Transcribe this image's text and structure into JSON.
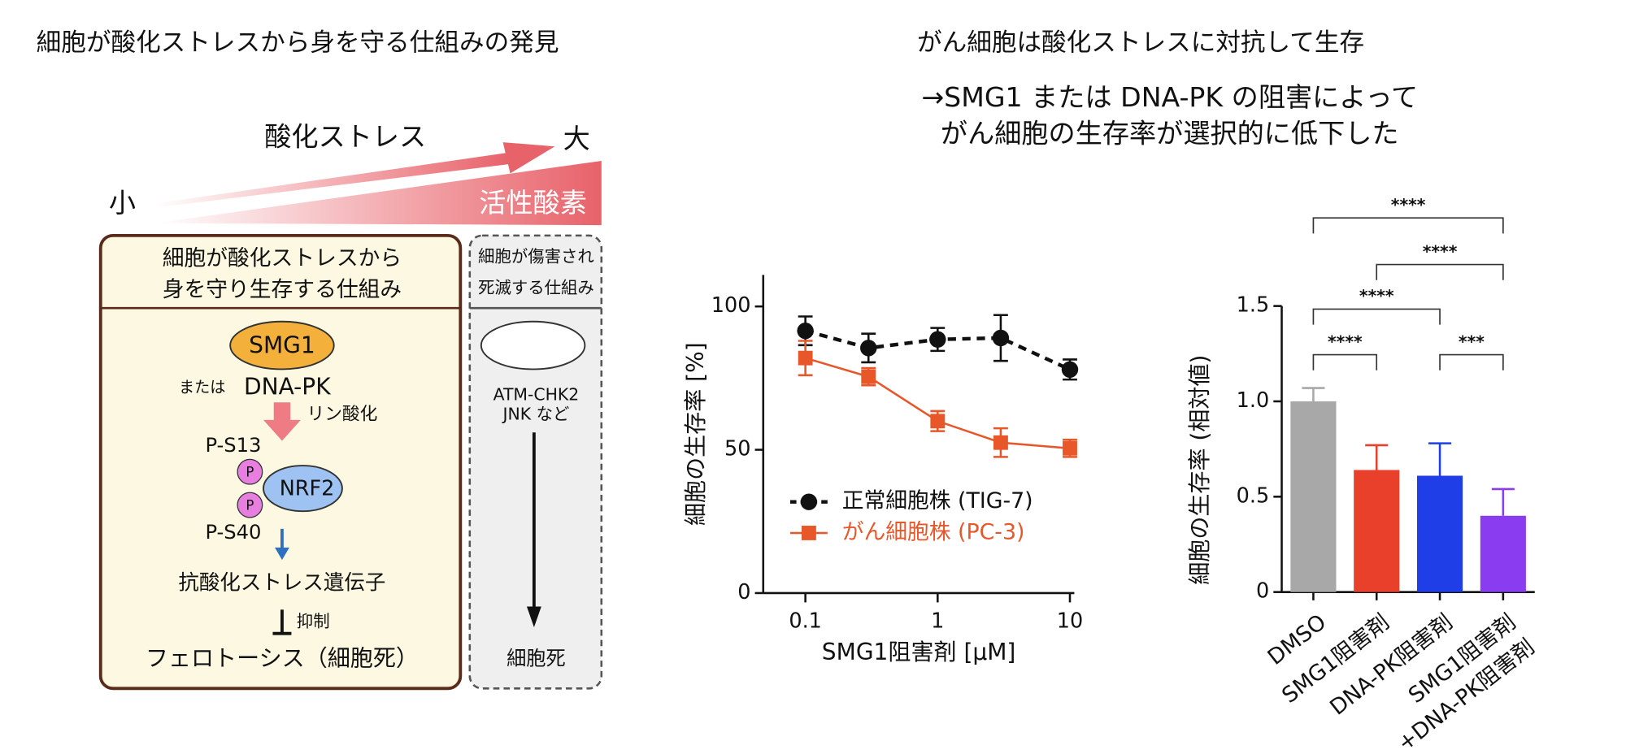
{
  "diagram": {
    "title": "細胞が酸化ストレスから身を守る仕組みの発見",
    "stress_label": "酸化ストレス",
    "small": "小",
    "large": "大",
    "ros": "活性酸素",
    "survival_box": {
      "header": [
        "細胞が酸化ストレスから",
        "身を守り生存する仕組み"
      ],
      "smg1": "SMG1",
      "or": "または",
      "dnapk": "DNA-PK",
      "phos": "リン酸化",
      "ps13": "P-S13",
      "p1": "P",
      "p2": "P",
      "nrf2": "NRF2",
      "ps40": "P-S40",
      "genes": "抗酸化ストレス遺伝子",
      "inhibit": "抑制",
      "ferroptosis": "フェロトーシス（細胞死）"
    },
    "death_box": {
      "header": [
        "細胞が傷害され",
        "死滅する仕組み"
      ],
      "pathway": [
        "ATM-CHK2",
        "JNK など"
      ],
      "death": "細胞死"
    }
  },
  "right_title": "がん細胞は酸化ストレスに対抗して生存",
  "right_subtitle": [
    "→SMG1 または DNA-PK の阻害によって",
    "がん細胞の生存率が選択的に低下した"
  ],
  "chart_data": [
    {
      "type": "line",
      "x": [
        0.1,
        0.3,
        1,
        3,
        10
      ],
      "xlim": [
        0.048,
        10.8
      ],
      "xticks": [
        0.1,
        1,
        10
      ],
      "xlog": true,
      "ylim": [
        0,
        111
      ],
      "yticks": [
        0,
        50,
        100
      ],
      "xlabel": "SMG1阻害剤 [μM]",
      "ylabel": "細胞の生存率 [%]",
      "series": [
        {
          "name": "正常細胞株 (TIG-7)",
          "color": "#111111",
          "line_style": "dashed",
          "marker": "circle",
          "values": [
            91.5,
            85.5,
            88.5,
            89,
            78
          ],
          "errors": [
            5,
            5,
            4,
            8,
            3.5
          ]
        },
        {
          "name": "がん細胞株 (PC-3)",
          "color": "#e8572a",
          "line_style": "solid",
          "marker": "square",
          "values": [
            82,
            75.5,
            60,
            52.5,
            50.5
          ],
          "errors": [
            6,
            3,
            3.5,
            5,
            3
          ]
        }
      ]
    },
    {
      "type": "bar",
      "categories": [
        "DMSO",
        "SMG1阻害剤",
        "DNA-PK阻害剤",
        [
          "SMG1阻害剤",
          "+DNA-PK阻害剤"
        ]
      ],
      "values": [
        1.0,
        0.64,
        0.61,
        0.4
      ],
      "errors": [
        0.07,
        0.13,
        0.17,
        0.14
      ],
      "colors": [
        "#a8a8a8",
        "#e8402a",
        "#1f3ee8",
        "#8a3cf0"
      ],
      "ylim": [
        0,
        1.5
      ],
      "yticks": [
        0,
        0.5,
        {
          "value": 1.0,
          "label": "1.0"
        },
        1.5
      ],
      "ylabel": "細胞の生存率 (相対値)",
      "significance": [
        {
          "from": 0,
          "to": 3,
          "label": "****"
        },
        {
          "from": 1,
          "to": 3,
          "label": "****"
        },
        {
          "from": 0,
          "to": 2,
          "label": "****"
        },
        {
          "from": 0,
          "to": 1,
          "label": "****"
        },
        {
          "from": 2,
          "to": 3,
          "label": "***"
        }
      ]
    }
  ]
}
